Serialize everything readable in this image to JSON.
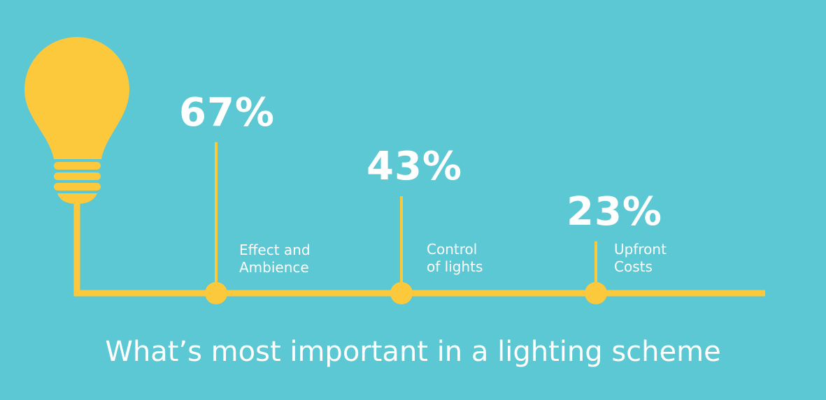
{
  "chart_data": {
    "type": "bar",
    "title": "What’s most important in a lighting scheme",
    "categories": [
      [
        "Effect and",
        "Ambience"
      ],
      [
        "Control",
        "of lights"
      ],
      [
        "Upfront",
        "Costs"
      ]
    ],
    "value_labels": [
      "67%",
      "43%",
      "23%"
    ],
    "values": [
      67,
      43,
      23
    ],
    "unit": "%",
    "ylim": [
      0,
      100
    ],
    "grid": false,
    "legend": "none"
  },
  "colors": {
    "background": "#5bc8d3",
    "accent": "#fcc93c",
    "text": "#ffffff"
  },
  "icons": {
    "bulb": "light-bulb-icon"
  }
}
